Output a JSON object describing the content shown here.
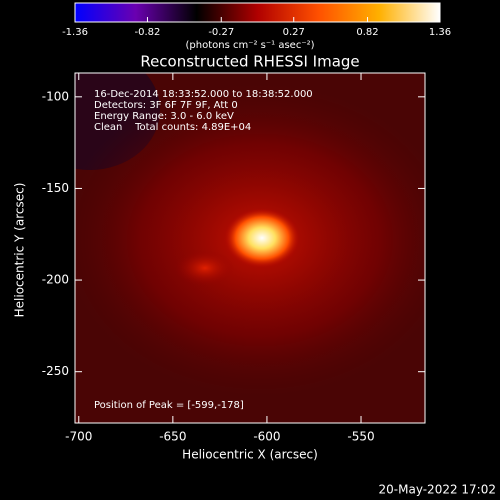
{
  "chart_data": {
    "type": "heatmap",
    "title": "Reconstructed RHESSI Image",
    "x_label": "Heliocentric X (arcsec)",
    "y_label": "Heliocentric Y (arcsec)",
    "xlim": [
      -702,
      -516
    ],
    "xticks": [
      -700,
      -650,
      -600,
      -550
    ],
    "ylim": [
      -278,
      -87
    ],
    "yticks": [
      -100,
      -150,
      -200,
      -250
    ],
    "colorbar": {
      "label": "(photons cm⁻² s⁻¹ asec⁻²)",
      "lim": [
        -1.36,
        1.36
      ],
      "ticks": [
        -1.36,
        -0.82,
        -0.27,
        0.27,
        0.82,
        1.36
      ],
      "colors": [
        "#0000ff",
        "#6a00b0",
        "#000000",
        "#b00000",
        "#ff5000",
        "#ffb000",
        "#ffffff"
      ]
    },
    "annotations": [
      "16-Dec-2014 18:33:52.000 to 18:38:52.000",
      "Detectors: 3F 6F 7F 9F, Att 0",
      "Energy Range: 3.0 - 6.0 keV",
      "Clean    Total counts: 4.89E+04"
    ],
    "peak_label": "Position of Peak = [-599,-178]",
    "footer": "20-May-2022 17:02"
  }
}
